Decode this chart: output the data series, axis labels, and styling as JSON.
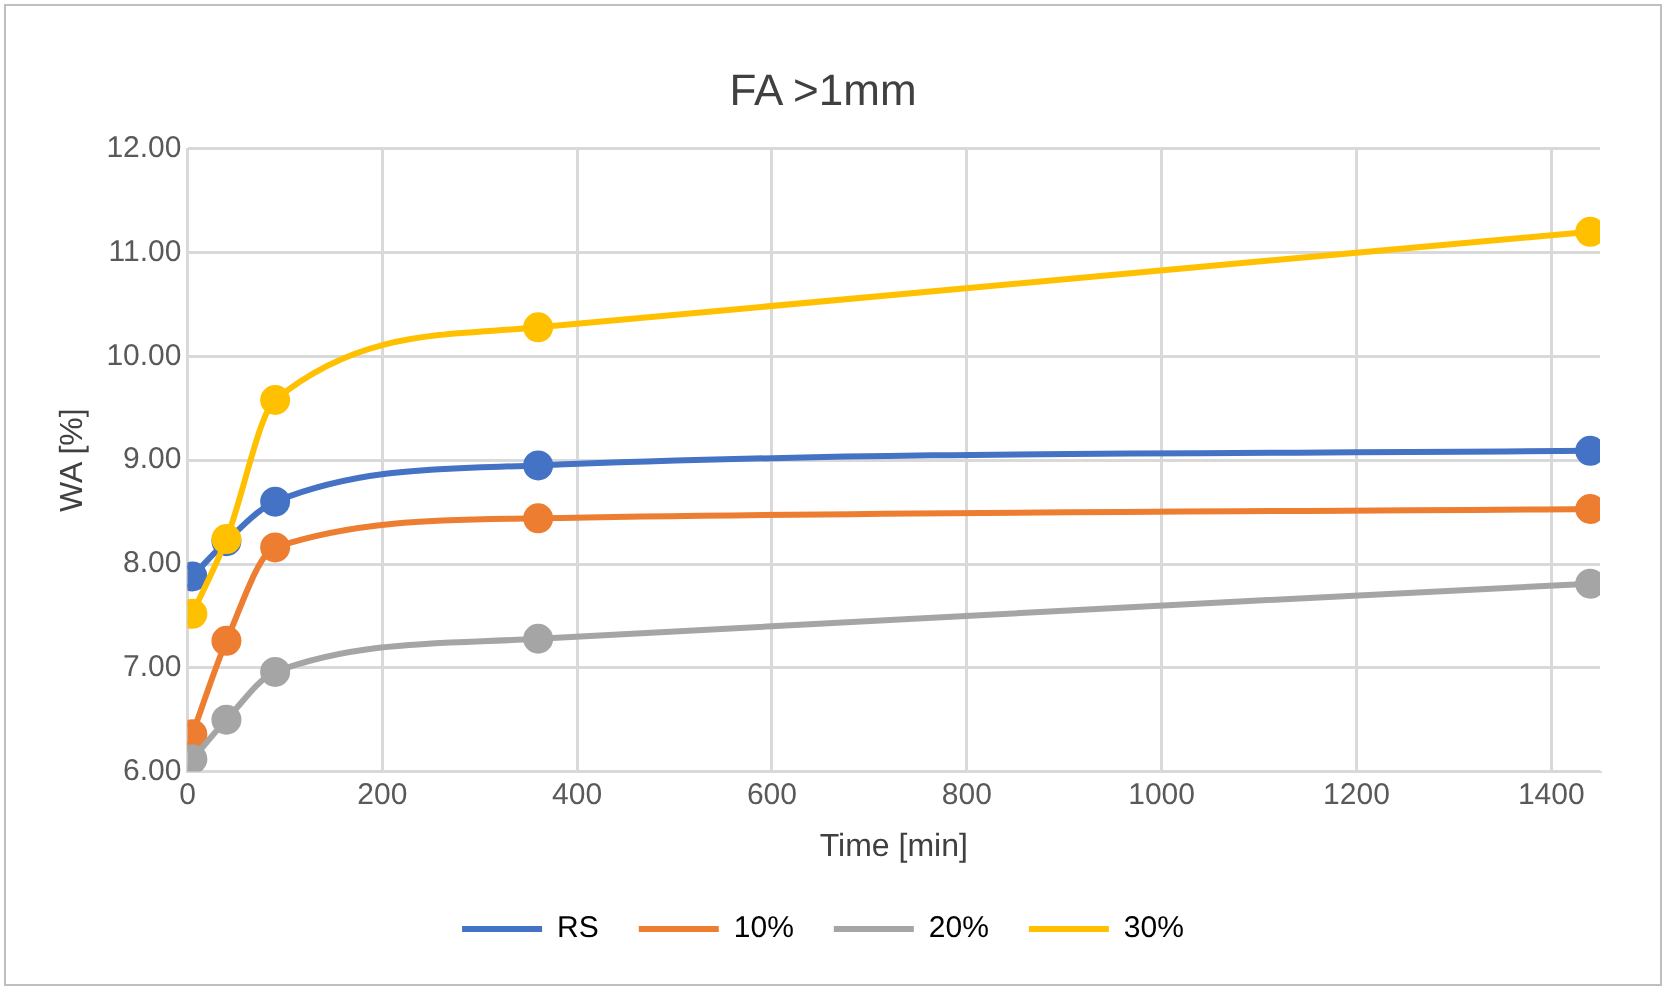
{
  "chart_data": {
    "type": "line",
    "title": "FA >1mm",
    "xlabel": "Time [min]",
    "ylabel": "WA [%]",
    "x": [
      5,
      40,
      90,
      360,
      1440
    ],
    "series": [
      {
        "name": "RS",
        "color": "#4472c4",
        "values": [
          7.88,
          8.22,
          8.6,
          8.95,
          9.09
        ]
      },
      {
        "name": "10%",
        "color": "#ed7d31",
        "values": [
          6.36,
          7.26,
          8.16,
          8.44,
          8.53
        ]
      },
      {
        "name": "20%",
        "color": "#a5a5a5",
        "values": [
          6.12,
          6.5,
          6.96,
          7.28,
          7.81
        ]
      },
      {
        "name": "30%",
        "color": "#ffc000",
        "values": [
          7.52,
          8.24,
          9.58,
          10.28,
          11.2
        ]
      }
    ],
    "xlim": [
      0,
      1450
    ],
    "xticks": [
      0,
      200,
      400,
      600,
      800,
      1000,
      1200,
      1400
    ],
    "ylim": [
      6,
      12
    ],
    "yticks": [
      {
        "value": 6,
        "label": "6.00"
      },
      {
        "value": 7,
        "label": "7.00"
      },
      {
        "value": 8,
        "label": "8.00"
      },
      {
        "value": 9,
        "label": "9.00"
      },
      {
        "value": 10,
        "label": "10.00"
      },
      {
        "value": 11,
        "label": "11.00"
      },
      {
        "value": 12,
        "label": "12.00"
      }
    ],
    "grid": true,
    "legend": "bottom",
    "marker": "circle",
    "line_style": "solid"
  }
}
